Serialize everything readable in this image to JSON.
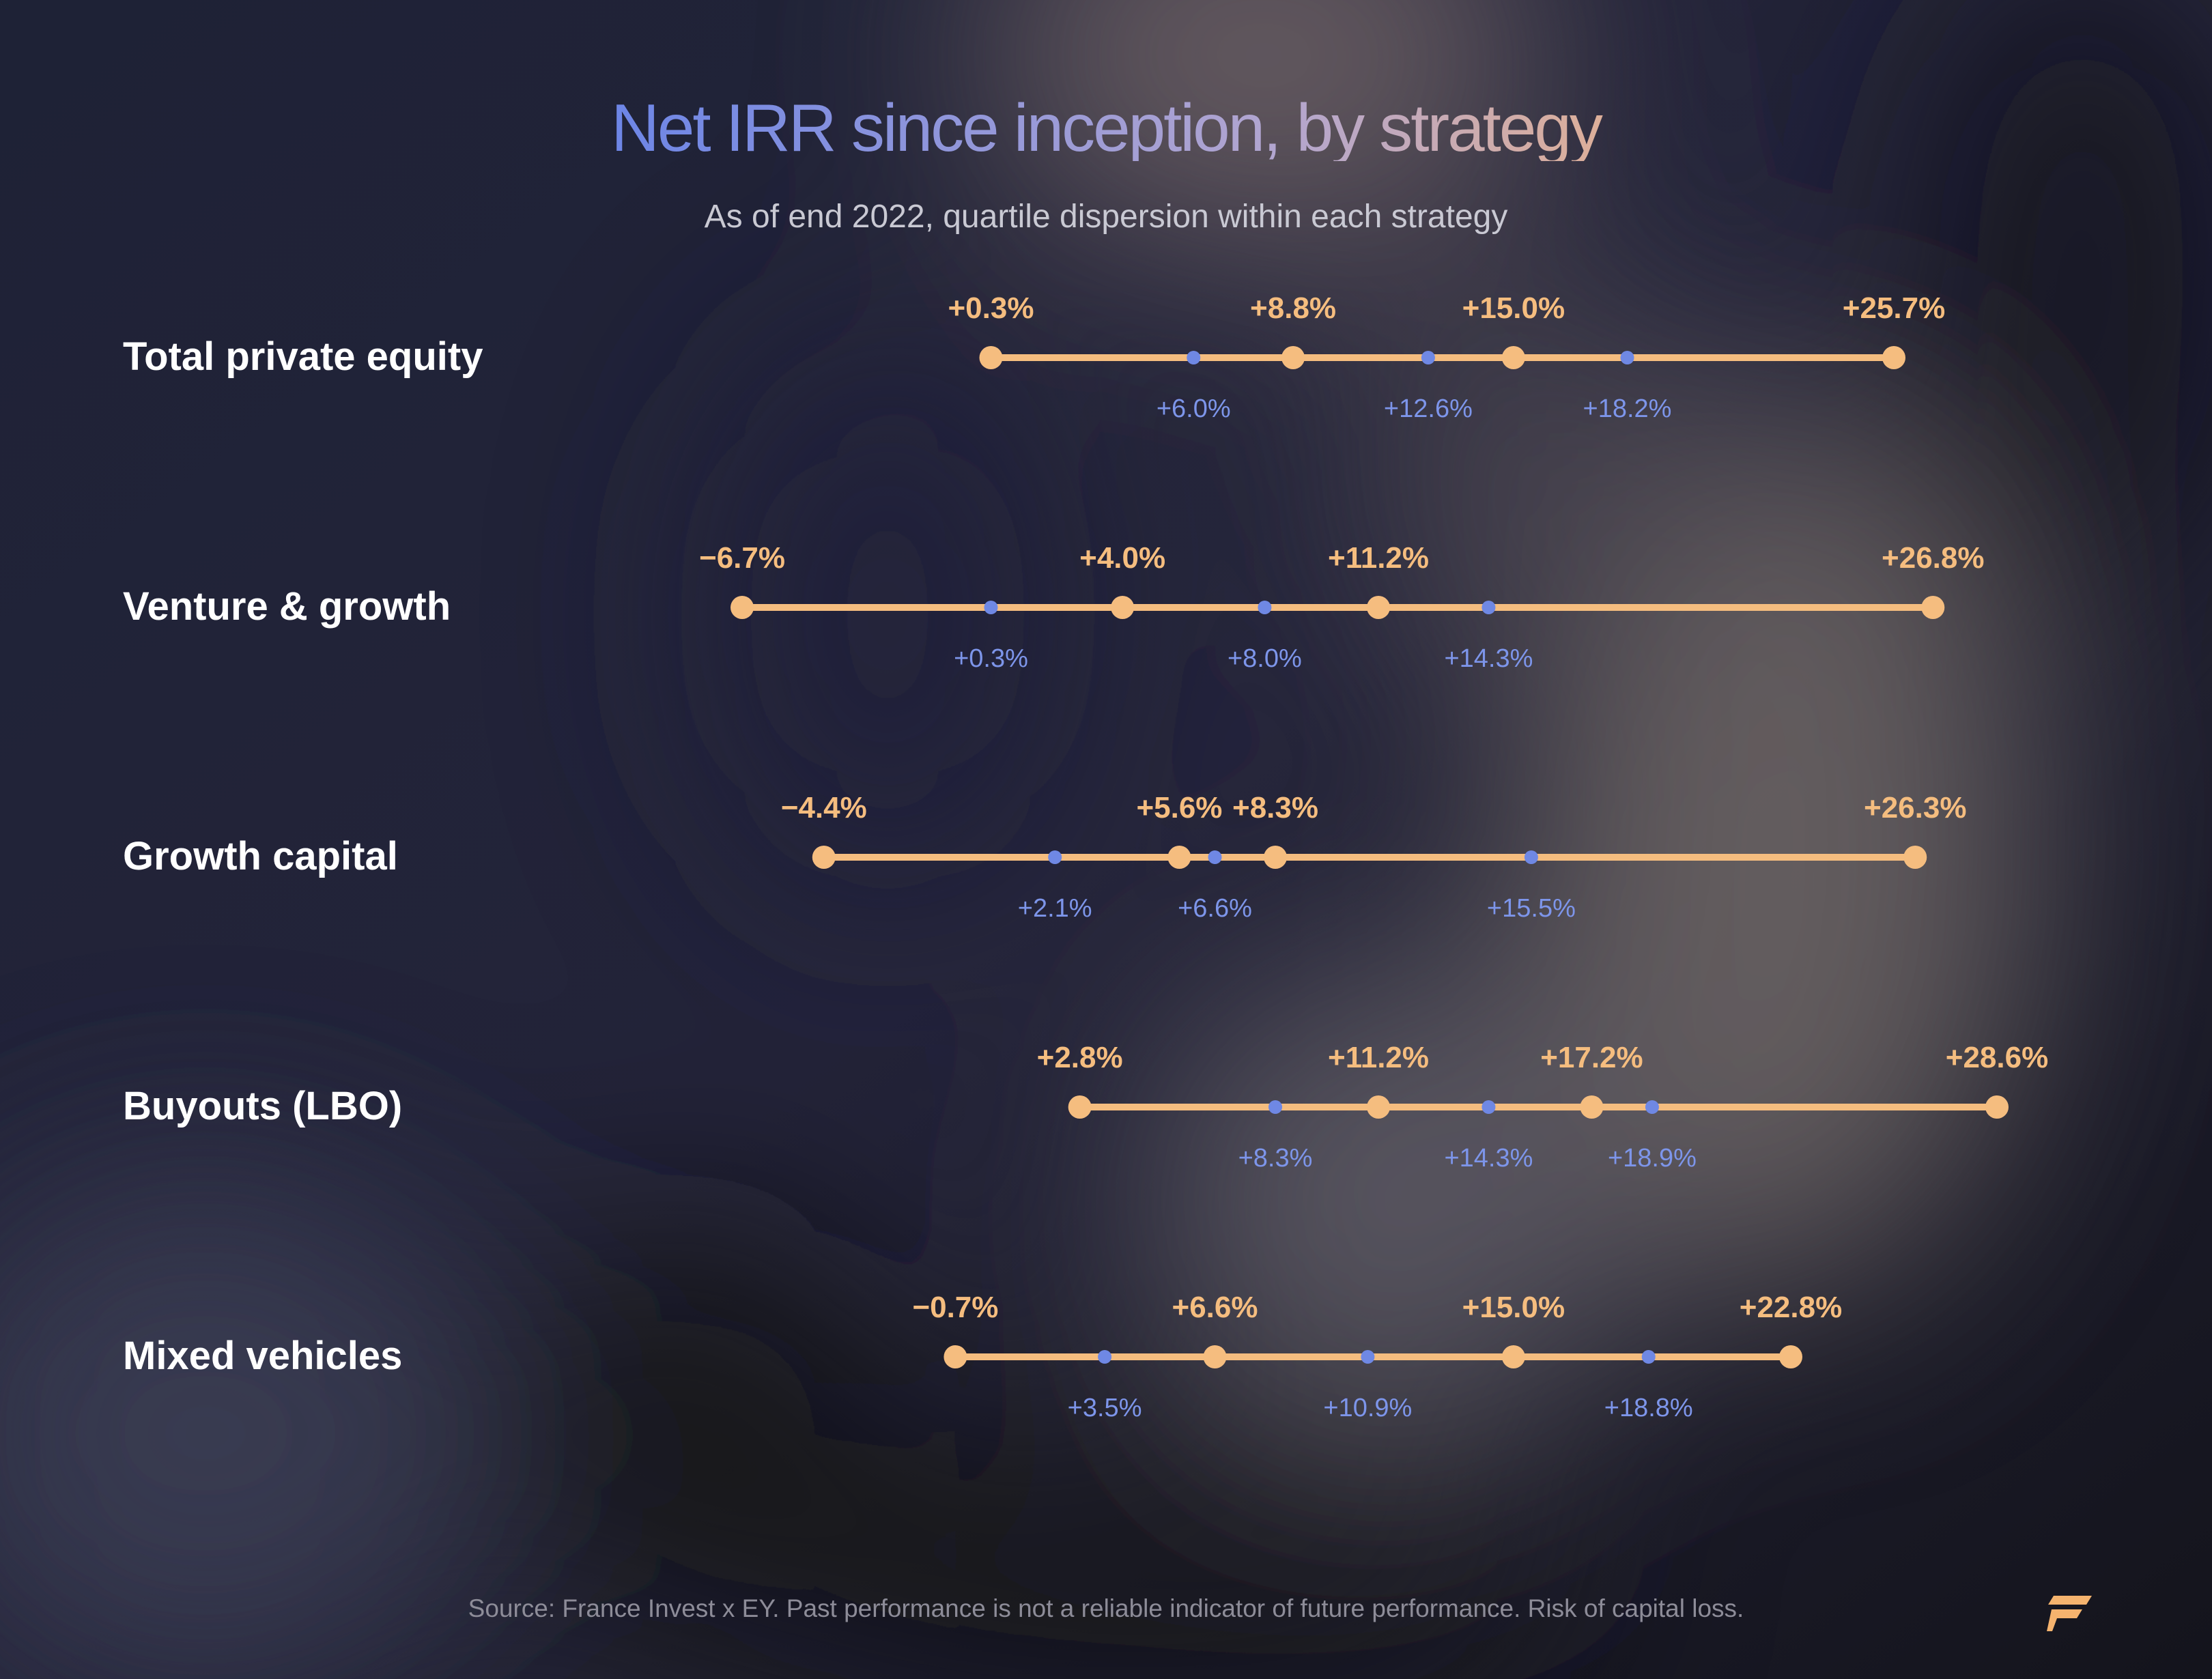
{
  "title": "Net IRR since inception, by strategy",
  "subtitle": "As of end 2022, quartile dispersion within each strategy",
  "source": "Source: France Invest x EY. Past performance is not a reliable indicator of future performance. Risk of capital loss.",
  "colors": {
    "quartile": "#f5bd7f",
    "decile": "#6f88e4",
    "label": "#ffffff",
    "decile_label": "#7d95ea"
  },
  "chart_data": {
    "type": "dot-range",
    "x_unit": "%",
    "xlim": [
      -6.7,
      28.6
    ],
    "rows": [
      {
        "name": "Total private equity",
        "points": [
          0.3,
          8.8,
          15.0,
          25.7
        ],
        "point_labels": [
          "+0.3%",
          "+8.8%",
          "+15.0%",
          "+25.7%"
        ],
        "minor": [
          6.0,
          12.6,
          18.2
        ],
        "minor_labels": [
          "+6.0%",
          "+12.6%",
          "+18.2%"
        ]
      },
      {
        "name": "Venture & growth",
        "points": [
          -6.7,
          4.0,
          11.2,
          26.8
        ],
        "point_labels": [
          "−6.7%",
          "+4.0%",
          "+11.2%",
          "+26.8%"
        ],
        "minor": [
          0.3,
          8.0,
          14.3
        ],
        "minor_labels": [
          "+0.3%",
          "+8.0%",
          "+14.3%"
        ]
      },
      {
        "name": "Growth capital",
        "points": [
          -4.4,
          5.6,
          8.3,
          26.3
        ],
        "point_labels": [
          "−4.4%",
          "+5.6%",
          "+8.3%",
          "+26.3%"
        ],
        "minor": [
          2.1,
          6.6,
          15.5
        ],
        "minor_labels": [
          "+2.1%",
          "+6.6%",
          "+15.5%"
        ]
      },
      {
        "name": "Buyouts (LBO)",
        "points": [
          2.8,
          11.2,
          17.2,
          28.6
        ],
        "point_labels": [
          "+2.8%",
          "+11.2%",
          "+17.2%",
          "+28.6%"
        ],
        "minor": [
          8.3,
          14.3,
          18.9
        ],
        "minor_labels": [
          "+8.3%",
          "+14.3%",
          "+18.9%"
        ]
      },
      {
        "name": "Mixed vehicles",
        "points": [
          -0.7,
          6.6,
          15.0,
          22.8
        ],
        "point_labels": [
          "−0.7%",
          "+6.6%",
          "+15.0%",
          "+22.8%"
        ],
        "minor": [
          3.5,
          10.9,
          18.8
        ],
        "minor_labels": [
          "+3.5%",
          "+10.9%",
          "+18.8%"
        ]
      }
    ]
  }
}
